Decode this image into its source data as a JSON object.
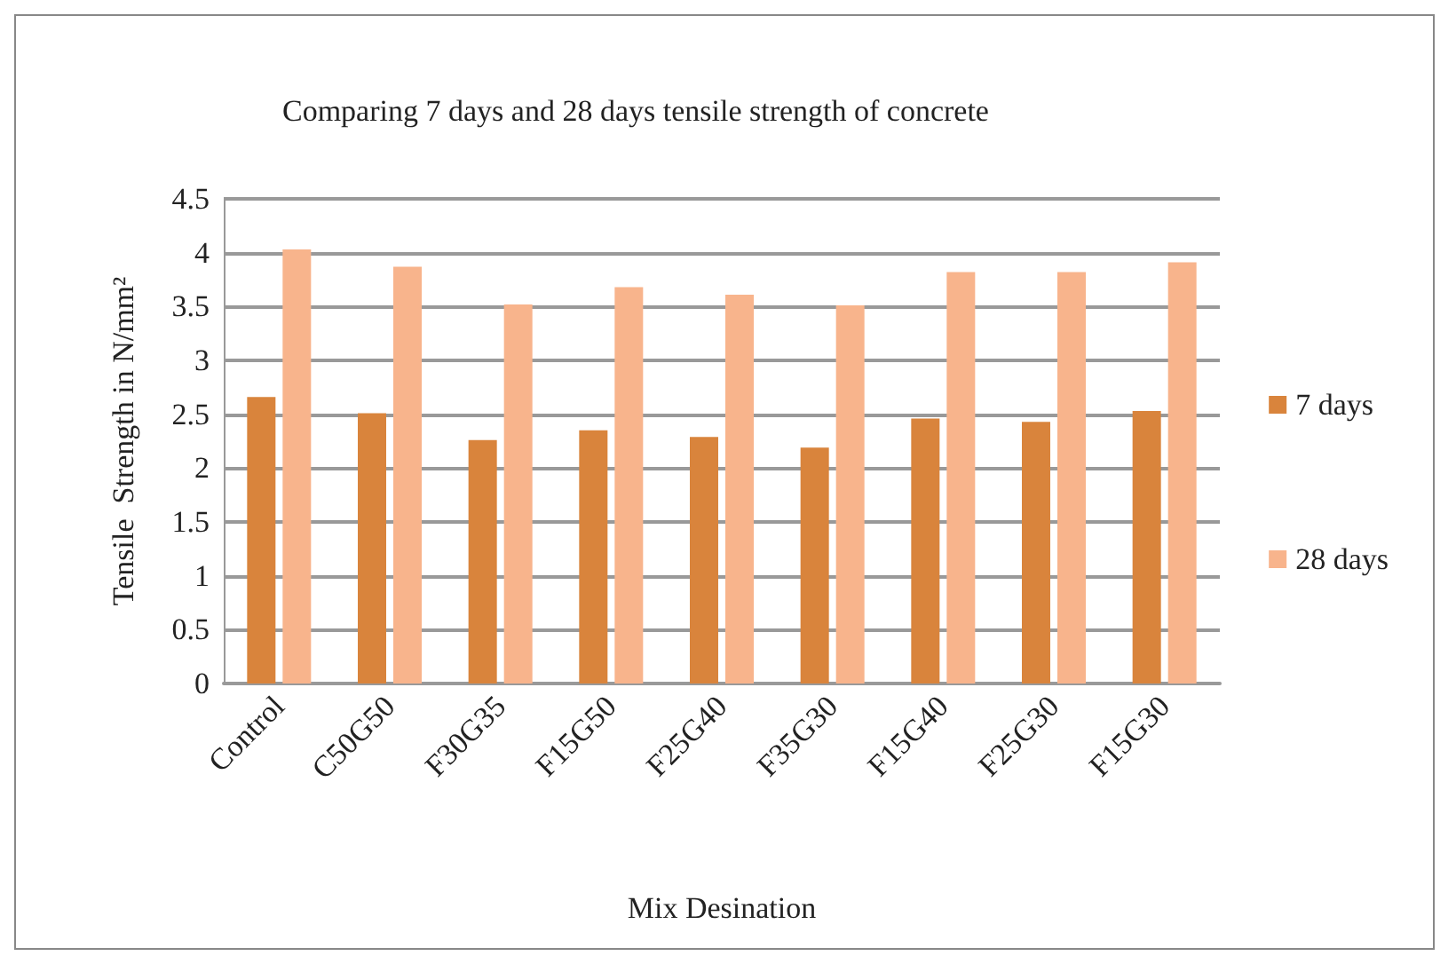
{
  "chart_data": {
    "type": "bar",
    "title": "Comparing 7 days and 28 days tensile strength of concrete",
    "xlabel": "Mix Desination",
    "ylabel": "Tensile  Strength in N/mm²",
    "categories": [
      "Control",
      "C50G50",
      "F30G35",
      "F15G50",
      "F25G40",
      "F35G30",
      "F15G40",
      "F25G30",
      "F15G30"
    ],
    "series": [
      {
        "name": "7 days",
        "color": "#d9843c",
        "values": [
          2.66,
          2.51,
          2.26,
          2.35,
          2.29,
          2.19,
          2.46,
          2.43,
          2.53
        ]
      },
      {
        "name": "28 days",
        "color": "#f8b48c",
        "values": [
          4.03,
          3.87,
          3.52,
          3.68,
          3.61,
          3.51,
          3.82,
          3.82,
          3.91
        ]
      }
    ],
    "ylim": [
      0,
      4.5
    ],
    "yticks": [
      0,
      0.5,
      1,
      1.5,
      2,
      2.5,
      3,
      3.5,
      4,
      4.5
    ],
    "grid": "y",
    "legend": "right"
  }
}
